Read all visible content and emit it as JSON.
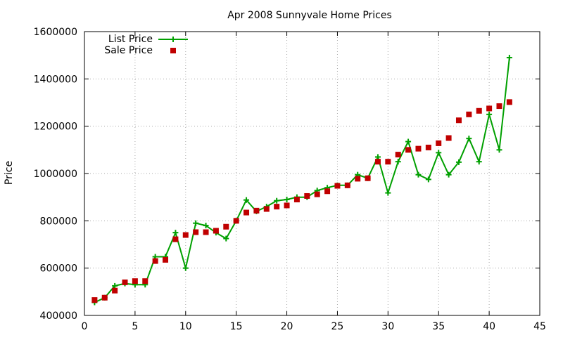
{
  "chart_data": {
    "type": "line",
    "title": "Apr 2008 Sunnyvale Home Prices",
    "xlabel": "",
    "ylabel": "Price",
    "xlim": [
      0,
      45
    ],
    "ylim": [
      400000,
      1600000
    ],
    "x_ticks": [
      0,
      5,
      10,
      15,
      20,
      25,
      30,
      35,
      40,
      45
    ],
    "x_tick_labels": [
      "0",
      "5",
      "10",
      "15",
      "20",
      "25",
      "30",
      "35",
      "40",
      "45"
    ],
    "y_ticks": [
      400000,
      600000,
      800000,
      1000000,
      1200000,
      1400000,
      1600000
    ],
    "y_tick_labels": [
      "400000",
      "600000",
      "800000",
      "1000000",
      "1200000",
      "1400000",
      "1600000"
    ],
    "grid": true,
    "legend_position": "top-left",
    "series": [
      {
        "name": "List Price",
        "style": "line-with-plus-markers",
        "color": "#00a000",
        "x": [
          1,
          2,
          3,
          4,
          5,
          6,
          7,
          8,
          9,
          10,
          11,
          12,
          13,
          14,
          15,
          16,
          17,
          18,
          19,
          20,
          21,
          22,
          23,
          24,
          25,
          26,
          27,
          28,
          29,
          30,
          31,
          32,
          33,
          34,
          35,
          36,
          37,
          38,
          39,
          40,
          41,
          42
        ],
        "values": [
          455000,
          475000,
          525000,
          535000,
          530000,
          530000,
          648000,
          648000,
          750000,
          600000,
          790000,
          780000,
          750000,
          725000,
          800000,
          888000,
          840000,
          860000,
          885000,
          890000,
          900000,
          900000,
          928000,
          940000,
          950000,
          950000,
          995000,
          980000,
          1070000,
          918000,
          1050000,
          1135000,
          995000,
          975000,
          1088000,
          995000,
          1048000,
          1148000,
          1050000,
          1250000,
          1100000,
          1490000
        ]
      },
      {
        "name": "Sale Price",
        "style": "square-markers",
        "color": "#c00000",
        "x": [
          1,
          2,
          3,
          4,
          5,
          6,
          7,
          8,
          9,
          10,
          11,
          12,
          13,
          14,
          15,
          16,
          17,
          18,
          19,
          20,
          21,
          22,
          23,
          24,
          25,
          26,
          27,
          28,
          29,
          30,
          31,
          32,
          33,
          34,
          35,
          36,
          37,
          38,
          39,
          40,
          41,
          42
        ],
        "values": [
          465000,
          475000,
          505000,
          540000,
          545000,
          545000,
          630000,
          635000,
          722000,
          740000,
          752000,
          752000,
          758000,
          775000,
          800000,
          835000,
          843000,
          850000,
          860000,
          865000,
          890000,
          905000,
          912000,
          925000,
          948000,
          950000,
          978000,
          980000,
          1050000,
          1050000,
          1080000,
          1100000,
          1105000,
          1110000,
          1128000,
          1150000,
          1225000,
          1250000,
          1265000,
          1275000,
          1285000,
          1302000
        ]
      }
    ]
  }
}
